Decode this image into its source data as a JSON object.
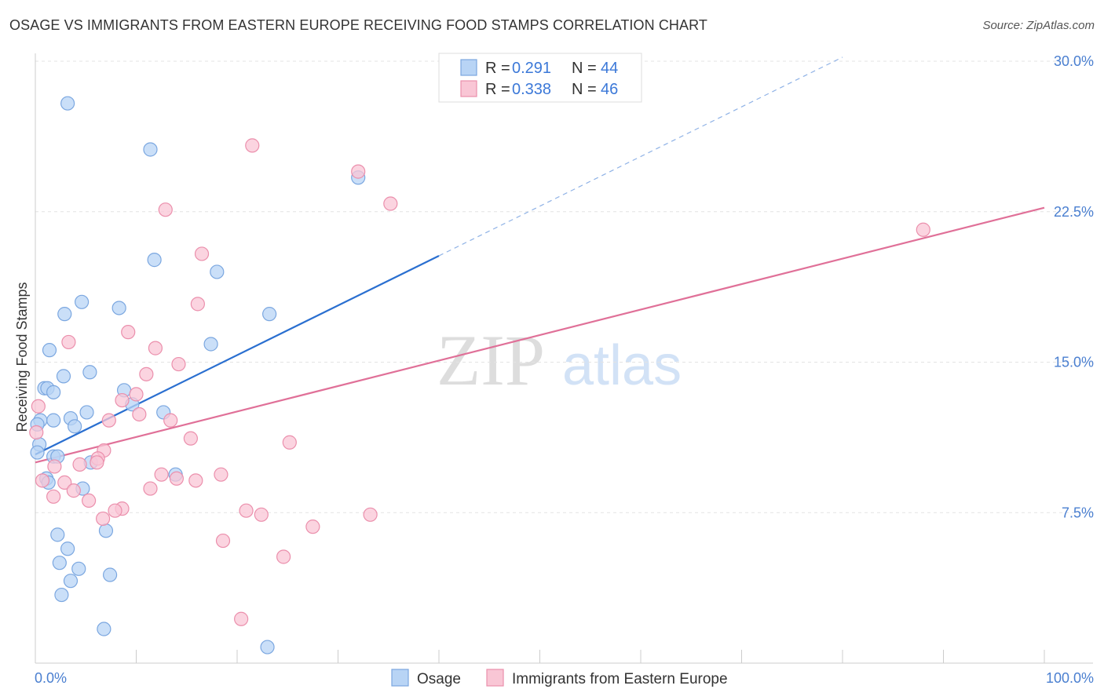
{
  "title": "OSAGE VS IMMIGRANTS FROM EASTERN EUROPE RECEIVING FOOD STAMPS CORRELATION CHART",
  "source": "Source: ZipAtlas.com",
  "watermark": {
    "part1": "ZIP",
    "part2": "atlas"
  },
  "colors": {
    "osage_fill": "#b8d4f5",
    "osage_stroke": "#7ba7e0",
    "osage_line": "#2a6fd0",
    "imm_fill": "#f9c6d5",
    "imm_stroke": "#eb8fac",
    "imm_line": "#e07098",
    "tick_text": "#4a7fd0",
    "grid": "#e3e3e3"
  },
  "legend": {
    "r_label": "R =",
    "n_label": "N =",
    "osage": {
      "r": "0.291",
      "n": "44"
    },
    "imm": {
      "r": "0.338",
      "n": "46"
    }
  },
  "chart_data": {
    "type": "scatter",
    "title": "OSAGE VS IMMIGRANTS FROM EASTERN EUROPE RECEIVING FOOD STAMPS CORRELATION CHART",
    "xlabel": "",
    "ylabel": "Receiving Food Stamps",
    "xlim": [
      0,
      100
    ],
    "ylim": [
      0,
      30
    ],
    "x_tick_labels": [
      "0.0%",
      "100.0%"
    ],
    "y_ticks": [
      7.5,
      15.0,
      22.5,
      30.0
    ],
    "y_tick_labels": [
      "7.5%",
      "15.0%",
      "22.5%",
      "30.0%"
    ],
    "grid": true,
    "series": [
      {
        "name": "Osage",
        "color": "#7ba7e0",
        "points": [
          [
            3.2,
            27.9
          ],
          [
            11.4,
            25.6
          ],
          [
            32.0,
            24.2
          ],
          [
            11.8,
            20.1
          ],
          [
            18.0,
            19.5
          ],
          [
            4.6,
            18.0
          ],
          [
            8.3,
            17.7
          ],
          [
            2.9,
            17.4
          ],
          [
            23.2,
            17.4
          ],
          [
            1.4,
            15.6
          ],
          [
            17.4,
            15.9
          ],
          [
            5.4,
            14.5
          ],
          [
            2.8,
            14.3
          ],
          [
            0.9,
            13.7
          ],
          [
            1.2,
            13.7
          ],
          [
            1.8,
            13.5
          ],
          [
            8.8,
            13.6
          ],
          [
            9.6,
            12.9
          ],
          [
            5.1,
            12.5
          ],
          [
            12.7,
            12.5
          ],
          [
            0.5,
            12.1
          ],
          [
            1.8,
            12.1
          ],
          [
            3.5,
            12.2
          ],
          [
            0.2,
            11.9
          ],
          [
            3.9,
            11.8
          ],
          [
            0.4,
            10.9
          ],
          [
            1.8,
            10.3
          ],
          [
            2.2,
            10.3
          ],
          [
            5.5,
            10.0
          ],
          [
            13.9,
            9.4
          ],
          [
            1.1,
            9.2
          ],
          [
            1.3,
            9.0
          ],
          [
            4.7,
            8.7
          ],
          [
            2.2,
            6.4
          ],
          [
            7.0,
            6.6
          ],
          [
            3.2,
            5.7
          ],
          [
            2.4,
            5.0
          ],
          [
            4.3,
            4.7
          ],
          [
            7.4,
            4.4
          ],
          [
            3.5,
            4.1
          ],
          [
            2.6,
            3.4
          ],
          [
            6.8,
            1.7
          ],
          [
            23.0,
            0.8
          ],
          [
            0.2,
            10.5
          ]
        ]
      },
      {
        "name": "Immigrants from Eastern Europe",
        "color": "#eb8fac",
        "points": [
          [
            21.5,
            25.8
          ],
          [
            32.0,
            24.5
          ],
          [
            35.2,
            22.9
          ],
          [
            12.9,
            22.6
          ],
          [
            88.0,
            21.6
          ],
          [
            16.5,
            20.4
          ],
          [
            16.1,
            17.9
          ],
          [
            9.2,
            16.5
          ],
          [
            3.3,
            16.0
          ],
          [
            11.9,
            15.7
          ],
          [
            14.2,
            14.9
          ],
          [
            11.0,
            14.4
          ],
          [
            10.0,
            13.4
          ],
          [
            8.6,
            13.1
          ],
          [
            0.3,
            12.8
          ],
          [
            10.3,
            12.4
          ],
          [
            13.4,
            12.1
          ],
          [
            7.3,
            12.1
          ],
          [
            15.4,
            11.2
          ],
          [
            25.2,
            11.0
          ],
          [
            6.8,
            10.6
          ],
          [
            6.2,
            10.2
          ],
          [
            6.1,
            10.0
          ],
          [
            4.4,
            9.9
          ],
          [
            1.9,
            9.8
          ],
          [
            12.5,
            9.4
          ],
          [
            18.4,
            9.4
          ],
          [
            14.0,
            9.2
          ],
          [
            15.9,
            9.1
          ],
          [
            0.7,
            9.1
          ],
          [
            2.9,
            9.0
          ],
          [
            11.4,
            8.7
          ],
          [
            3.8,
            8.6
          ],
          [
            1.8,
            8.3
          ],
          [
            5.3,
            8.1
          ],
          [
            8.6,
            7.7
          ],
          [
            7.9,
            7.6
          ],
          [
            20.9,
            7.6
          ],
          [
            22.4,
            7.4
          ],
          [
            33.2,
            7.4
          ],
          [
            6.7,
            7.2
          ],
          [
            27.5,
            6.8
          ],
          [
            18.6,
            6.1
          ],
          [
            24.6,
            5.3
          ],
          [
            20.4,
            2.2
          ],
          [
            0.1,
            11.5
          ]
        ]
      }
    ],
    "trend_lines": [
      {
        "series": "Osage",
        "x": [
          0,
          40
        ],
        "y": [
          10.4,
          20.3
        ],
        "dashed_extension_x": [
          40,
          80
        ],
        "dashed_extension_y": [
          20.3,
          30.2
        ]
      },
      {
        "series": "Immigrants from Eastern Europe",
        "x": [
          0,
          100
        ],
        "y": [
          10.0,
          22.7
        ]
      }
    ]
  }
}
